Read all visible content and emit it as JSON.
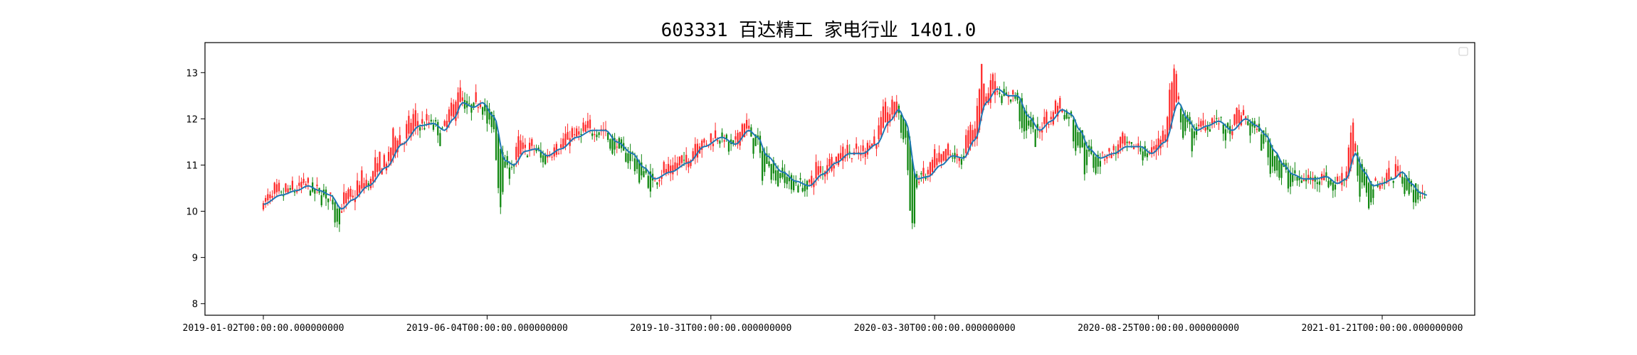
{
  "chart_data": {
    "type": "candlestick",
    "title": "603331 百达精工 家电行业 1401.0",
    "x_tick_labels": [
      "2019-01-02T00:00:00.000000000",
      "2019-06-04T00:00:00.000000000",
      "2019-10-31T00:00:00.000000000",
      "2020-03-30T00:00:00.000000000",
      "2020-08-25T00:00:00.000000000",
      "2021-01-21T00:00:00.000000000"
    ],
    "y_ticks": [
      8,
      9,
      10,
      11,
      12,
      13
    ],
    "ylim": [
      7.75,
      13.65
    ],
    "trading_days": 520,
    "x_tick_positions": [
      0,
      100,
      200,
      300,
      400,
      500
    ],
    "legend": {
      "placement": "upper right",
      "entries": []
    },
    "grid": false,
    "moving_average_anchors": [
      [
        0,
        10.15
      ],
      [
        8,
        10.35
      ],
      [
        15,
        10.45
      ],
      [
        20,
        10.55
      ],
      [
        25,
        10.45
      ],
      [
        30,
        10.35
      ],
      [
        35,
        10.05
      ],
      [
        40,
        10.25
      ],
      [
        47,
        10.55
      ],
      [
        55,
        10.95
      ],
      [
        62,
        11.45
      ],
      [
        70,
        11.85
      ],
      [
        76,
        11.9
      ],
      [
        81,
        11.75
      ],
      [
        85,
        12.0
      ],
      [
        89,
        12.35
      ],
      [
        94,
        12.25
      ],
      [
        98,
        12.35
      ],
      [
        103,
        12.05
      ],
      [
        108,
        11.1
      ],
      [
        112,
        11.0
      ],
      [
        117,
        11.3
      ],
      [
        122,
        11.35
      ],
      [
        127,
        11.2
      ],
      [
        133,
        11.35
      ],
      [
        140,
        11.6
      ],
      [
        147,
        11.75
      ],
      [
        153,
        11.75
      ],
      [
        158,
        11.5
      ],
      [
        165,
        11.25
      ],
      [
        170,
        10.95
      ],
      [
        175,
        10.7
      ],
      [
        182,
        10.85
      ],
      [
        190,
        11.05
      ],
      [
        197,
        11.4
      ],
      [
        205,
        11.6
      ],
      [
        211,
        11.45
      ],
      [
        217,
        11.75
      ],
      [
        221,
        11.6
      ],
      [
        225,
        11.2
      ],
      [
        232,
        10.85
      ],
      [
        238,
        10.65
      ],
      [
        244,
        10.55
      ],
      [
        250,
        10.8
      ],
      [
        256,
        11.05
      ],
      [
        262,
        11.25
      ],
      [
        268,
        11.25
      ],
      [
        274,
        11.45
      ],
      [
        280,
        11.95
      ],
      [
        284,
        12.2
      ],
      [
        287,
        11.95
      ],
      [
        292,
        10.7
      ],
      [
        297,
        10.75
      ],
      [
        303,
        11.0
      ],
      [
        308,
        11.2
      ],
      [
        313,
        11.15
      ],
      [
        318,
        11.55
      ],
      [
        323,
        12.35
      ],
      [
        328,
        12.65
      ],
      [
        333,
        12.5
      ],
      [
        337,
        12.5
      ],
      [
        342,
        12.05
      ],
      [
        347,
        11.75
      ],
      [
        352,
        11.95
      ],
      [
        357,
        12.2
      ],
      [
        361,
        12.1
      ],
      [
        365,
        11.75
      ],
      [
        369,
        11.35
      ],
      [
        374,
        11.15
      ],
      [
        380,
        11.25
      ],
      [
        386,
        11.4
      ],
      [
        392,
        11.4
      ],
      [
        397,
        11.25
      ],
      [
        403,
        11.5
      ],
      [
        409,
        12.35
      ],
      [
        413,
        12.0
      ],
      [
        417,
        11.75
      ],
      [
        422,
        11.85
      ],
      [
        427,
        11.95
      ],
      [
        433,
        11.75
      ],
      [
        439,
        12.0
      ],
      [
        444,
        11.85
      ],
      [
        448,
        11.65
      ],
      [
        452,
        11.3
      ],
      [
        456,
        11.0
      ],
      [
        460,
        10.8
      ],
      [
        465,
        10.7
      ],
      [
        470,
        10.7
      ],
      [
        475,
        10.75
      ],
      [
        480,
        10.6
      ],
      [
        484,
        10.7
      ],
      [
        488,
        11.25
      ],
      [
        492,
        10.85
      ],
      [
        496,
        10.55
      ],
      [
        500,
        10.6
      ],
      [
        505,
        10.7
      ],
      [
        509,
        10.85
      ],
      [
        513,
        10.6
      ],
      [
        517,
        10.4
      ],
      [
        520,
        10.35
      ]
    ]
  }
}
